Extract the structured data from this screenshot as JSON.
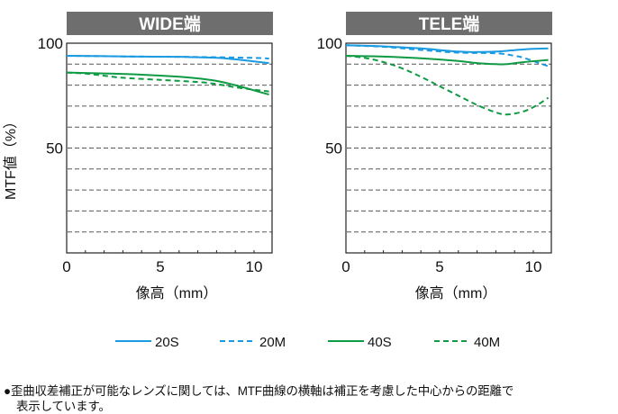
{
  "chart_data": [
    {
      "type": "line",
      "title": "WIDE端",
      "xlabel": "像高（mm）",
      "ylabel": "MTF値（%）",
      "xlim": [
        0,
        10.8
      ],
      "ylim": [
        0,
        100
      ],
      "xticks": [
        0,
        5,
        10
      ],
      "yticks": [
        50,
        100
      ],
      "grid": true,
      "series": [
        {
          "name": "20S",
          "style": "solid",
          "color": "#1a9ae0",
          "x": [
            0,
            2,
            4,
            6,
            8,
            9,
            10,
            10.8
          ],
          "y": [
            94,
            93.8,
            93.6,
            93.5,
            93,
            92.3,
            91.3,
            90.5
          ]
        },
        {
          "name": "20M",
          "style": "dashed",
          "color": "#1a9ae0",
          "x": [
            0,
            2,
            4,
            6,
            8,
            10,
            10.8
          ],
          "y": [
            94,
            93.8,
            93.6,
            93.5,
            93.3,
            93,
            92.7
          ]
        },
        {
          "name": "40S",
          "style": "solid",
          "color": "#0f9a44",
          "x": [
            0,
            2,
            4,
            6,
            7,
            8,
            9,
            10,
            10.8
          ],
          "y": [
            86,
            85.6,
            85,
            84,
            83.2,
            82,
            80,
            77.5,
            75.5
          ]
        },
        {
          "name": "40M",
          "style": "dashed",
          "color": "#0f9a44",
          "x": [
            0,
            1,
            2,
            3,
            5,
            7,
            8,
            9,
            10,
            10.8
          ],
          "y": [
            86,
            85.5,
            84.5,
            83.5,
            82.5,
            81.5,
            80.5,
            79,
            77.8,
            77
          ]
        }
      ]
    },
    {
      "type": "line",
      "title": "TELE端",
      "xlabel": "像高（mm）",
      "ylabel": "",
      "xlim": [
        0,
        10.8
      ],
      "ylim": [
        0,
        100
      ],
      "xticks": [
        0,
        5,
        10
      ],
      "yticks": [
        50,
        100
      ],
      "grid": true,
      "series": [
        {
          "name": "20S",
          "style": "solid",
          "color": "#1a9ae0",
          "x": [
            0,
            2,
            4,
            6,
            7,
            8,
            9,
            10,
            10.8
          ],
          "y": [
            99,
            98.5,
            97.5,
            96,
            95.8,
            96,
            96.7,
            97.3,
            97.5
          ]
        },
        {
          "name": "20M",
          "style": "dashed",
          "color": "#1a9ae0",
          "x": [
            0,
            2,
            4,
            6,
            8,
            9,
            9.5,
            10,
            10.8
          ],
          "y": [
            99,
            98.3,
            96.8,
            95.5,
            95.2,
            94,
            93,
            91.5,
            89
          ]
        },
        {
          "name": "40S",
          "style": "solid",
          "color": "#0f9a44",
          "x": [
            0,
            2,
            4,
            6,
            7,
            8,
            8.6,
            9.5,
            10.8
          ],
          "y": [
            94,
            93.6,
            92.8,
            91.5,
            90.5,
            90,
            90,
            91,
            92
          ]
        },
        {
          "name": "40M",
          "style": "dashed",
          "color": "#0f9a44",
          "x": [
            0,
            1,
            2,
            3,
            4,
            5,
            6,
            7,
            8,
            8.6,
            9.5,
            10.2,
            10.8
          ],
          "y": [
            94,
            93,
            91,
            88,
            84,
            79.5,
            75,
            70.5,
            67,
            66,
            67.5,
            70.5,
            74
          ]
        }
      ]
    }
  ],
  "legend": {
    "placement": "bottom",
    "items": [
      {
        "label": "20S",
        "color": "#1a9ae0",
        "style": "solid"
      },
      {
        "label": "20M",
        "color": "#1a9ae0",
        "style": "dashed"
      },
      {
        "label": "40S",
        "color": "#0f9a44",
        "style": "solid"
      },
      {
        "label": "40M",
        "color": "#0f9a44",
        "style": "dashed"
      }
    ]
  },
  "header_bg": "#6e6e6e",
  "note": {
    "line1": "●歪曲収差補正が可能なレンズに関しては、MTF曲線の横軸は補正を考慮した中心からの距離で",
    "line2": "表示しています。"
  }
}
